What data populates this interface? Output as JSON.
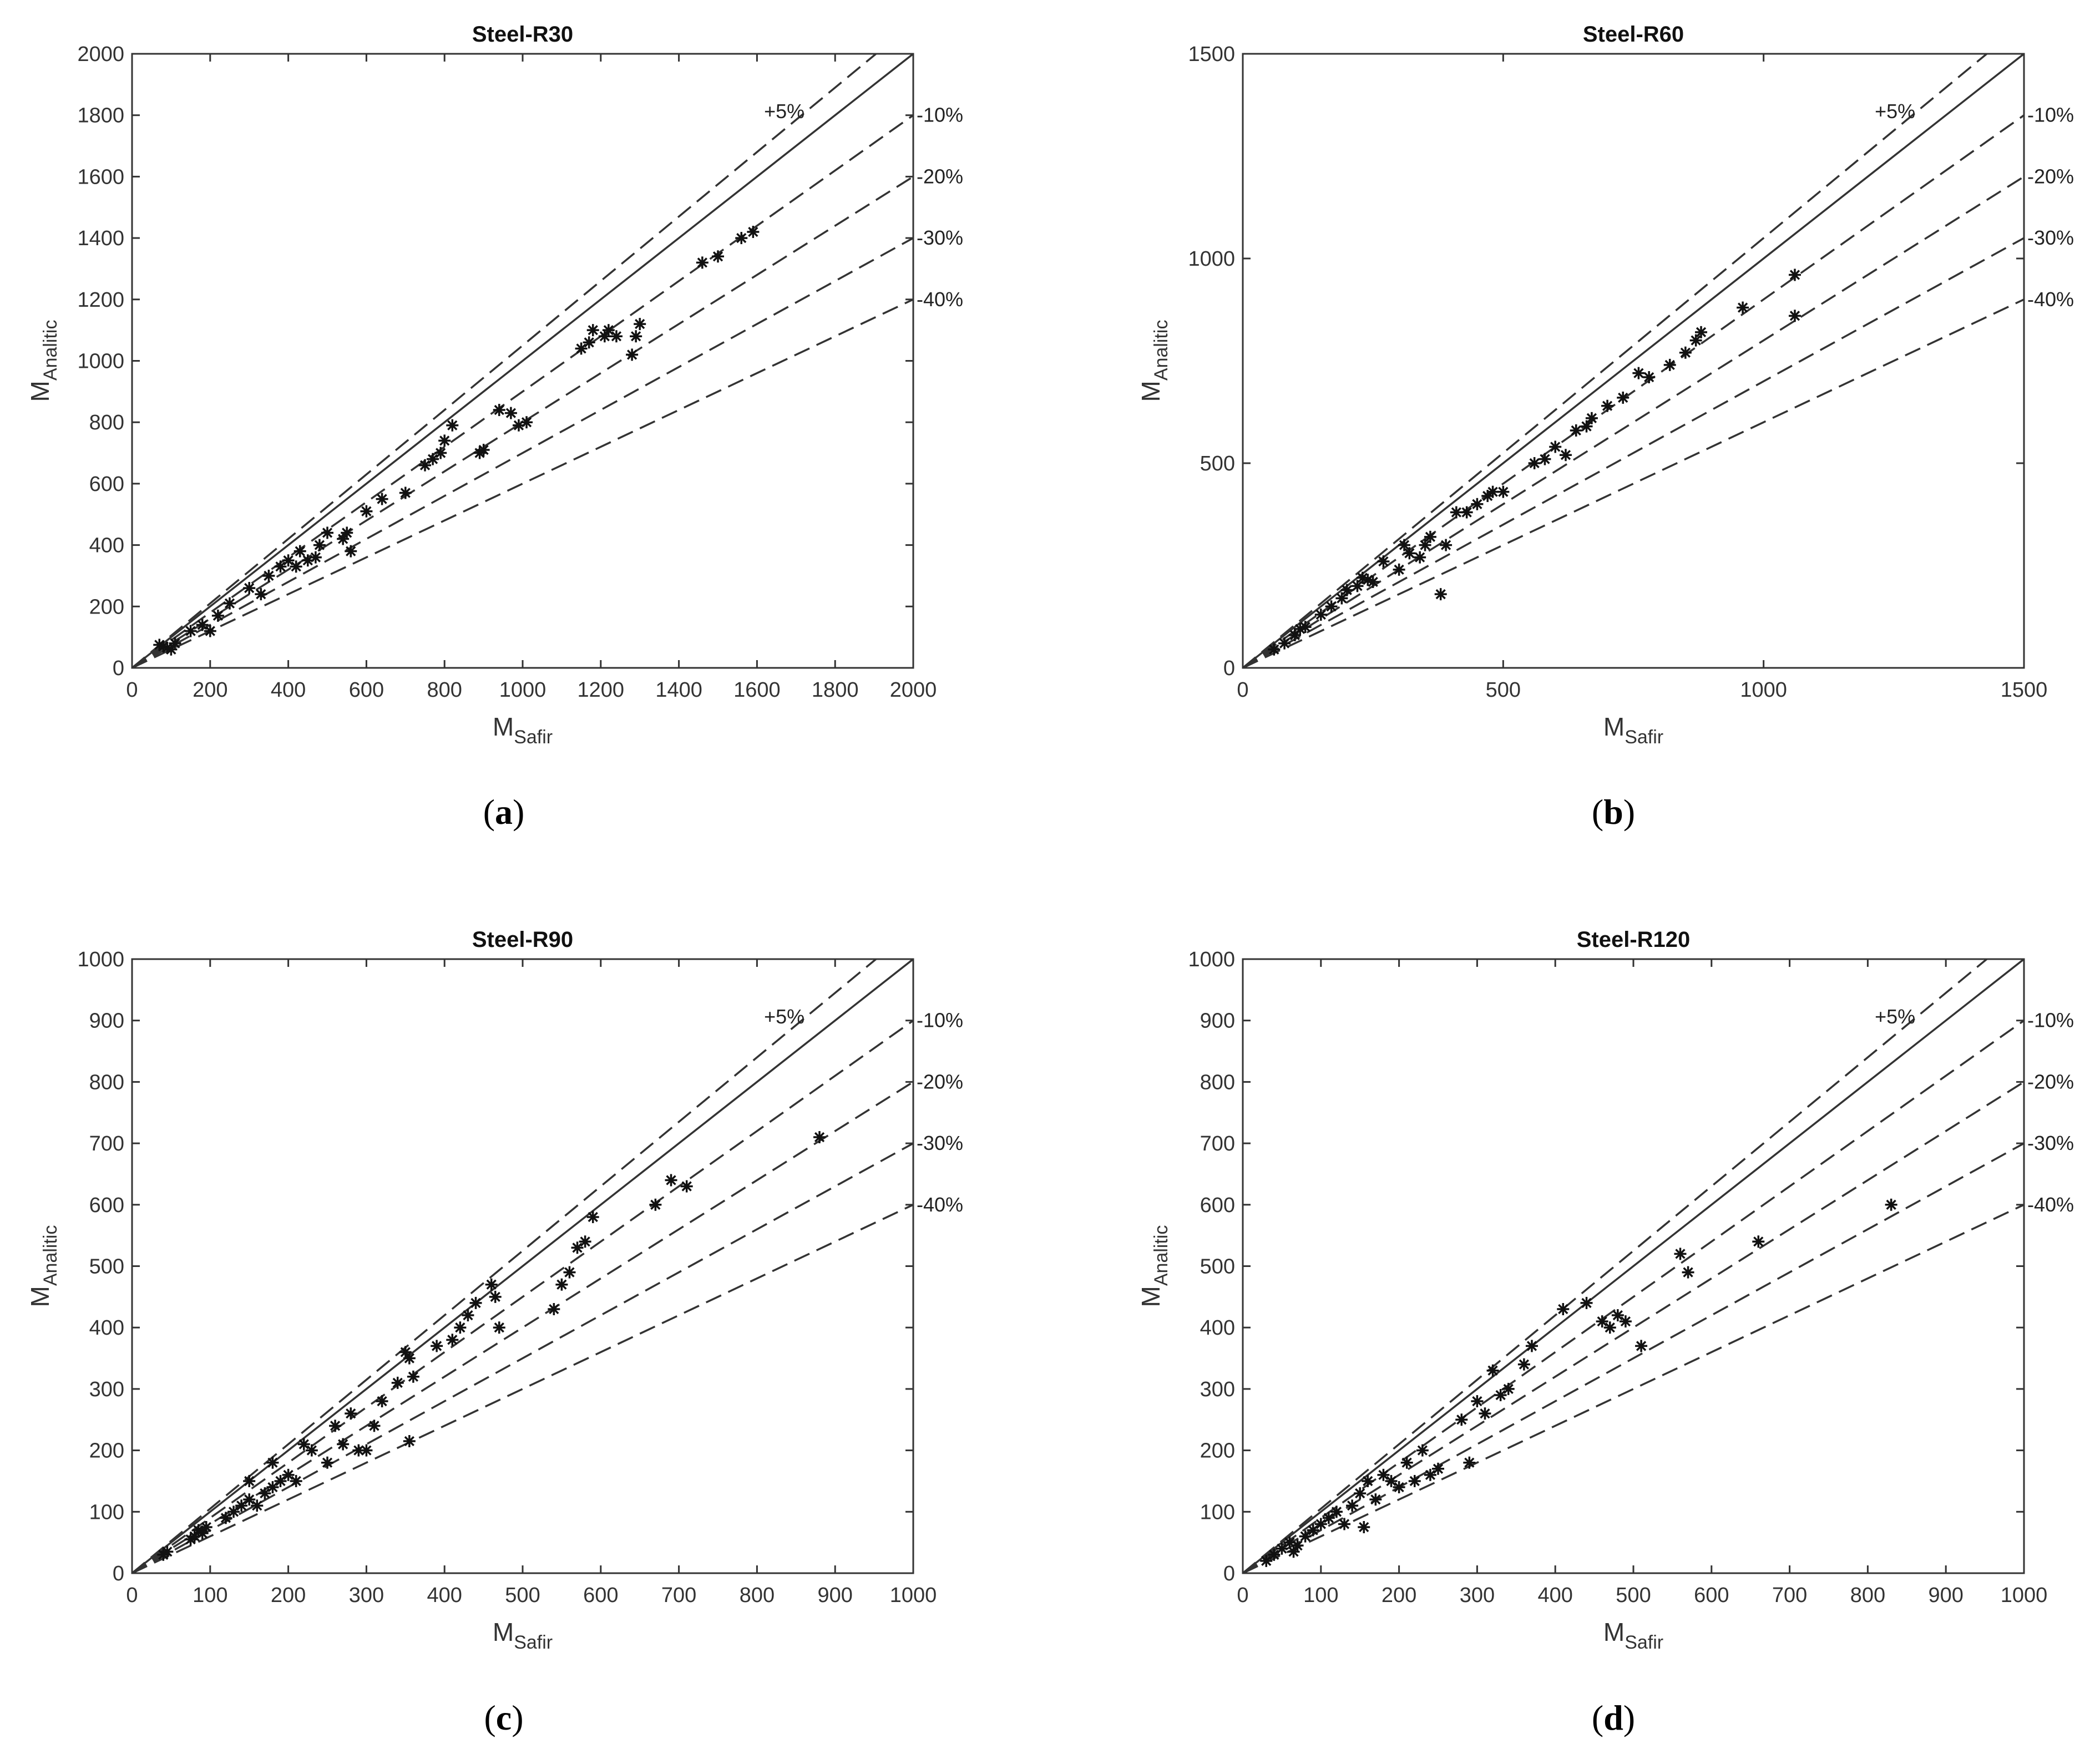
{
  "figure": {
    "panel_labels": [
      "a",
      "b",
      "c",
      "d"
    ]
  },
  "chart_data": [
    {
      "type": "scatter",
      "title": "Steel-R30",
      "xlabel": "M",
      "xlabel_sub": "Safir",
      "ylabel": "M",
      "ylabel_sub": "Analitic",
      "xlim": [
        0,
        2000
      ],
      "ylim": [
        0,
        2000
      ],
      "xticks": [
        0,
        200,
        400,
        600,
        800,
        1000,
        1200,
        1400,
        1600,
        1800,
        2000
      ],
      "yticks": [
        0,
        200,
        400,
        600,
        800,
        1000,
        1200,
        1400,
        1600,
        1800,
        2000
      ],
      "reference_lines": [
        {
          "label": "",
          "slope": 1.0,
          "style": "solid"
        },
        {
          "label": "+5%",
          "slope": 1.05,
          "style": "dashed"
        },
        {
          "label": "-10%",
          "slope": 0.9,
          "style": "dashed"
        },
        {
          "label": "-20%",
          "slope": 0.8,
          "style": "dashed"
        },
        {
          "label": "-30%",
          "slope": 0.7,
          "style": "dashed"
        },
        {
          "label": "-40%",
          "slope": 0.6,
          "style": "dashed"
        }
      ],
      "marker": "*",
      "grid": false,
      "points": [
        [
          70,
          75
        ],
        [
          80,
          70
        ],
        [
          90,
          65
        ],
        [
          100,
          60
        ],
        [
          110,
          80
        ],
        [
          150,
          120
        ],
        [
          180,
          140
        ],
        [
          200,
          120
        ],
        [
          220,
          170
        ],
        [
          250,
          210
        ],
        [
          300,
          260
        ],
        [
          330,
          240
        ],
        [
          350,
          300
        ],
        [
          380,
          330
        ],
        [
          400,
          350
        ],
        [
          420,
          330
        ],
        [
          430,
          380
        ],
        [
          450,
          350
        ],
        [
          470,
          360
        ],
        [
          480,
          400
        ],
        [
          500,
          440
        ],
        [
          540,
          420
        ],
        [
          550,
          440
        ],
        [
          560,
          380
        ],
        [
          600,
          510
        ],
        [
          640,
          550
        ],
        [
          700,
          570
        ],
        [
          750,
          660
        ],
        [
          770,
          680
        ],
        [
          790,
          700
        ],
        [
          800,
          740
        ],
        [
          820,
          790
        ],
        [
          890,
          700
        ],
        [
          900,
          710
        ],
        [
          940,
          840
        ],
        [
          970,
          830
        ],
        [
          990,
          790
        ],
        [
          1010,
          800
        ],
        [
          1150,
          1040
        ],
        [
          1170,
          1060
        ],
        [
          1180,
          1100
        ],
        [
          1210,
          1080
        ],
        [
          1220,
          1100
        ],
        [
          1240,
          1080
        ],
        [
          1280,
          1020
        ],
        [
          1290,
          1080
        ],
        [
          1300,
          1120
        ],
        [
          1460,
          1320
        ],
        [
          1500,
          1340
        ],
        [
          1560,
          1400
        ],
        [
          1590,
          1420
        ]
      ]
    },
    {
      "type": "scatter",
      "title": "Steel-R60",
      "xlabel": "M",
      "xlabel_sub": "Safir",
      "ylabel": "M",
      "ylabel_sub": "Analitic",
      "xlim": [
        0,
        1500
      ],
      "ylim": [
        0,
        1500
      ],
      "xticks": [
        0,
        500,
        1000,
        1500
      ],
      "yticks": [
        0,
        500,
        1000,
        1500
      ],
      "reference_lines": [
        {
          "label": "",
          "slope": 1.0,
          "style": "solid"
        },
        {
          "label": "+5%",
          "slope": 1.05,
          "style": "dashed"
        },
        {
          "label": "-10%",
          "slope": 0.9,
          "style": "dashed"
        },
        {
          "label": "-20%",
          "slope": 0.8,
          "style": "dashed"
        },
        {
          "label": "-30%",
          "slope": 0.7,
          "style": "dashed"
        },
        {
          "label": "-40%",
          "slope": 0.6,
          "style": "dashed"
        }
      ],
      "marker": "*",
      "grid": false,
      "points": [
        [
          60,
          45
        ],
        [
          80,
          60
        ],
        [
          100,
          80
        ],
        [
          110,
          95
        ],
        [
          120,
          100
        ],
        [
          150,
          130
        ],
        [
          170,
          150
        ],
        [
          190,
          170
        ],
        [
          200,
          190
        ],
        [
          220,
          200
        ],
        [
          230,
          220
        ],
        [
          240,
          215
        ],
        [
          250,
          210
        ],
        [
          270,
          260
        ],
        [
          300,
          240
        ],
        [
          310,
          300
        ],
        [
          320,
          280
        ],
        [
          340,
          270
        ],
        [
          350,
          300
        ],
        [
          360,
          320
        ],
        [
          380,
          180
        ],
        [
          390,
          300
        ],
        [
          410,
          380
        ],
        [
          430,
          380
        ],
        [
          450,
          400
        ],
        [
          470,
          420
        ],
        [
          480,
          430
        ],
        [
          500,
          430
        ],
        [
          560,
          500
        ],
        [
          580,
          510
        ],
        [
          600,
          540
        ],
        [
          620,
          520
        ],
        [
          640,
          580
        ],
        [
          660,
          590
        ],
        [
          670,
          610
        ],
        [
          700,
          640
        ],
        [
          730,
          660
        ],
        [
          760,
          720
        ],
        [
          780,
          710
        ],
        [
          820,
          740
        ],
        [
          850,
          770
        ],
        [
          870,
          800
        ],
        [
          880,
          820
        ],
        [
          960,
          880
        ],
        [
          1060,
          860
        ],
        [
          1060,
          960
        ]
      ]
    },
    {
      "type": "scatter",
      "title": "Steel-R90",
      "xlabel": "M",
      "xlabel_sub": "Safir",
      "ylabel": "M",
      "ylabel_sub": "Analitic",
      "xlim": [
        0,
        1000
      ],
      "ylim": [
        0,
        1000
      ],
      "xticks": [
        0,
        100,
        200,
        300,
        400,
        500,
        600,
        700,
        800,
        900,
        1000
      ],
      "yticks": [
        0,
        100,
        200,
        300,
        400,
        500,
        600,
        700,
        800,
        900,
        1000
      ],
      "reference_lines": [
        {
          "label": "",
          "slope": 1.0,
          "style": "solid"
        },
        {
          "label": "+5%",
          "slope": 1.05,
          "style": "dashed"
        },
        {
          "label": "-10%",
          "slope": 0.9,
          "style": "dashed"
        },
        {
          "label": "-20%",
          "slope": 0.8,
          "style": "dashed"
        },
        {
          "label": "-30%",
          "slope": 0.7,
          "style": "dashed"
        },
        {
          "label": "-40%",
          "slope": 0.6,
          "style": "dashed"
        }
      ],
      "marker": "*",
      "grid": false,
      "points": [
        [
          40,
          30
        ],
        [
          45,
          35
        ],
        [
          75,
          55
        ],
        [
          80,
          60
        ],
        [
          85,
          70
        ],
        [
          90,
          65
        ],
        [
          95,
          75
        ],
        [
          120,
          90
        ],
        [
          130,
          100
        ],
        [
          140,
          110
        ],
        [
          150,
          120
        ],
        [
          150,
          150
        ],
        [
          160,
          110
        ],
        [
          170,
          130
        ],
        [
          180,
          140
        ],
        [
          180,
          180
        ],
        [
          190,
          150
        ],
        [
          200,
          160
        ],
        [
          210,
          150
        ],
        [
          220,
          210
        ],
        [
          230,
          200
        ],
        [
          250,
          180
        ],
        [
          260,
          240
        ],
        [
          270,
          210
        ],
        [
          280,
          260
        ],
        [
          290,
          200
        ],
        [
          300,
          200
        ],
        [
          310,
          240
        ],
        [
          320,
          280
        ],
        [
          340,
          310
        ],
        [
          350,
          360
        ],
        [
          355,
          350
        ],
        [
          360,
          320
        ],
        [
          390,
          370
        ],
        [
          410,
          380
        ],
        [
          420,
          400
        ],
        [
          430,
          420
        ],
        [
          440,
          440
        ],
        [
          460,
          470
        ],
        [
          465,
          450
        ],
        [
          470,
          400
        ],
        [
          540,
          430
        ],
        [
          550,
          470
        ],
        [
          560,
          490
        ],
        [
          570,
          530
        ],
        [
          580,
          540
        ],
        [
          590,
          580
        ],
        [
          670,
          600
        ],
        [
          690,
          640
        ],
        [
          710,
          630
        ],
        [
          880,
          710
        ],
        [
          355,
          215
        ]
      ]
    },
    {
      "type": "scatter",
      "title": "Steel-R120",
      "xlabel": "M",
      "xlabel_sub": "Safir",
      "ylabel": "M",
      "ylabel_sub": "Analitic",
      "xlim": [
        0,
        1000
      ],
      "ylim": [
        0,
        1000
      ],
      "xticks": [
        0,
        100,
        200,
        300,
        400,
        500,
        600,
        700,
        800,
        900,
        1000
      ],
      "yticks": [
        0,
        100,
        200,
        300,
        400,
        500,
        600,
        700,
        800,
        900,
        1000
      ],
      "reference_lines": [
        {
          "label": "",
          "slope": 1.0,
          "style": "solid"
        },
        {
          "label": "+5%",
          "slope": 1.05,
          "style": "dashed"
        },
        {
          "label": "-10%",
          "slope": 0.9,
          "style": "dashed"
        },
        {
          "label": "-20%",
          "slope": 0.8,
          "style": "dashed"
        },
        {
          "label": "-30%",
          "slope": 0.7,
          "style": "dashed"
        },
        {
          "label": "-40%",
          "slope": 0.6,
          "style": "dashed"
        }
      ],
      "marker": "*",
      "grid": false,
      "points": [
        [
          30,
          20
        ],
        [
          40,
          30
        ],
        [
          50,
          40
        ],
        [
          60,
          50
        ],
        [
          65,
          35
        ],
        [
          70,
          45
        ],
        [
          80,
          60
        ],
        [
          90,
          70
        ],
        [
          100,
          80
        ],
        [
          110,
          90
        ],
        [
          120,
          100
        ],
        [
          130,
          80
        ],
        [
          140,
          110
        ],
        [
          150,
          130
        ],
        [
          155,
          75
        ],
        [
          160,
          150
        ],
        [
          170,
          120
        ],
        [
          180,
          160
        ],
        [
          190,
          150
        ],
        [
          200,
          140
        ],
        [
          210,
          180
        ],
        [
          220,
          150
        ],
        [
          230,
          200
        ],
        [
          240,
          160
        ],
        [
          250,
          170
        ],
        [
          280,
          250
        ],
        [
          290,
          180
        ],
        [
          300,
          280
        ],
        [
          310,
          260
        ],
        [
          320,
          330
        ],
        [
          330,
          290
        ],
        [
          340,
          300
        ],
        [
          360,
          340
        ],
        [
          370,
          370
        ],
        [
          410,
          430
        ],
        [
          440,
          440
        ],
        [
          460,
          410
        ],
        [
          470,
          400
        ],
        [
          480,
          420
        ],
        [
          490,
          410
        ],
        [
          510,
          370
        ],
        [
          560,
          520
        ],
        [
          570,
          490
        ],
        [
          660,
          540
        ],
        [
          830,
          600
        ]
      ]
    }
  ]
}
